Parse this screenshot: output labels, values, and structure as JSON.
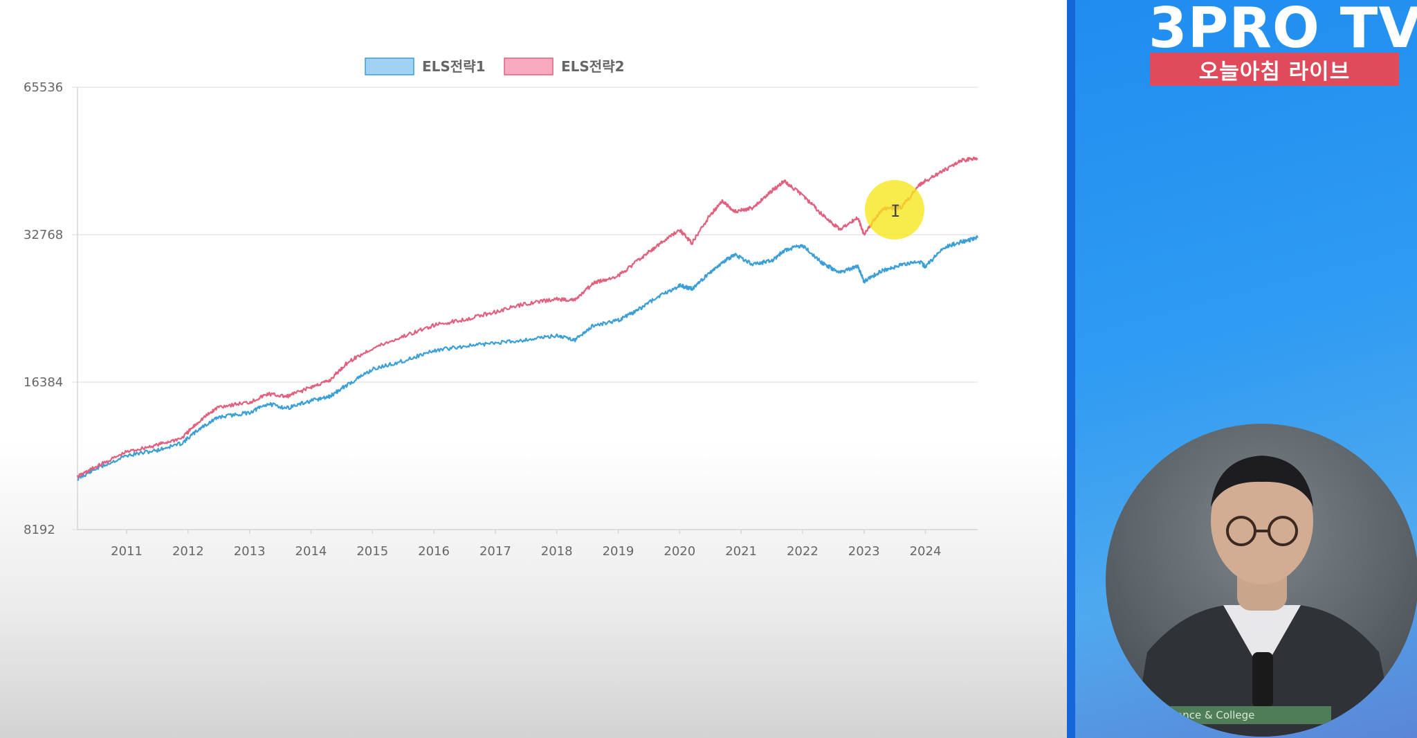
{
  "chart_data": {
    "type": "line",
    "title": "",
    "xlabel": "",
    "ylabel": "",
    "y_scale": "log2",
    "ylim": [
      8192,
      65536
    ],
    "y_ticks": [
      "65536",
      "32768",
      "16384",
      "8192"
    ],
    "x_ticks": [
      "2011",
      "2012",
      "2013",
      "2014",
      "2015",
      "2016",
      "2017",
      "2018",
      "2019",
      "2020",
      "2021",
      "2022",
      "2023",
      "2024"
    ],
    "xlim": [
      2010.2,
      2024.85
    ],
    "grid": "horizontal",
    "legend_position": "top-center",
    "series": [
      {
        "name": "ELS전략1",
        "color": "#3a9fd6",
        "fill": "#9fd2f3",
        "x": [
          2010.2,
          2010.5,
          2011.0,
          2011.5,
          2011.9,
          2012.2,
          2012.5,
          2013.0,
          2013.3,
          2013.6,
          2014.0,
          2014.3,
          2014.6,
          2015.0,
          2015.5,
          2016.0,
          2016.5,
          2017.0,
          2017.5,
          2018.0,
          2018.3,
          2018.6,
          2019.0,
          2019.3,
          2019.6,
          2020.0,
          2020.2,
          2020.5,
          2020.7,
          2020.9,
          2021.2,
          2021.5,
          2021.7,
          2022.0,
          2022.3,
          2022.6,
          2022.9,
          2023.0,
          2023.3,
          2023.6,
          2023.9,
          2024.0,
          2024.3,
          2024.6,
          2024.85
        ],
        "y": [
          10400,
          10900,
          11600,
          11900,
          12300,
          13200,
          13900,
          14200,
          14800,
          14500,
          15000,
          15300,
          16200,
          17400,
          18100,
          19000,
          19400,
          19700,
          20000,
          20400,
          20000,
          21400,
          21900,
          22900,
          24300,
          25800,
          25400,
          27500,
          28800,
          29800,
          28500,
          29000,
          30400,
          31200,
          28800,
          27400,
          28300,
          26300,
          27700,
          28400,
          28900,
          28200,
          30900,
          31700,
          32300
        ]
      },
      {
        "name": "ELS전략2",
        "color": "#e0607e",
        "fill": "#f7aabd",
        "x": [
          2010.2,
          2010.5,
          2011.0,
          2011.5,
          2011.9,
          2012.2,
          2012.5,
          2013.0,
          2013.3,
          2013.6,
          2014.0,
          2014.3,
          2014.6,
          2015.0,
          2015.5,
          2016.0,
          2016.5,
          2017.0,
          2017.5,
          2018.0,
          2018.3,
          2018.6,
          2019.0,
          2019.3,
          2019.6,
          2020.0,
          2020.2,
          2020.5,
          2020.7,
          2020.9,
          2021.2,
          2021.5,
          2021.7,
          2022.0,
          2022.3,
          2022.6,
          2022.9,
          2023.0,
          2023.3,
          2023.6,
          2023.9,
          2024.0,
          2024.3,
          2024.6,
          2024.85
        ],
        "y": [
          10500,
          11000,
          11800,
          12200,
          12600,
          13700,
          14600,
          14900,
          15500,
          15300,
          16000,
          16500,
          18000,
          19200,
          20300,
          21400,
          22000,
          22800,
          23700,
          24200,
          24100,
          26100,
          27000,
          28900,
          30900,
          33500,
          31500,
          36000,
          38400,
          36500,
          37200,
          40300,
          42100,
          39500,
          36200,
          33600,
          35600,
          32800,
          37000,
          37200,
          41300,
          42200,
          44300,
          46500,
          46900
        ]
      }
    ]
  },
  "side": {
    "logo": "3PRO TV",
    "banner": "오늘아침 라이브",
    "caption": "ance & College"
  }
}
